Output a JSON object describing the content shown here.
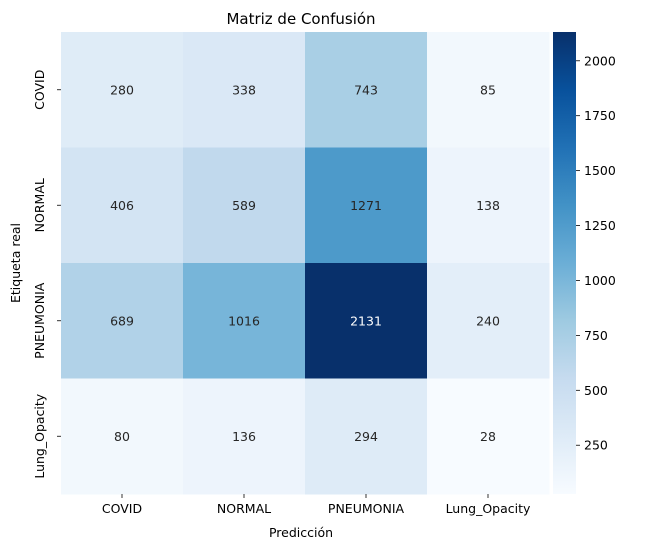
{
  "chart_data": {
    "type": "heatmap",
    "title": "Matriz de Confusión",
    "xlabel": "Predicción",
    "ylabel": "Etiqueta real",
    "x_categories": [
      "COVID",
      "NORMAL",
      "PNEUMONIA",
      "Lung_Opacity"
    ],
    "y_categories": [
      "COVID",
      "NORMAL",
      "PNEUMONIA",
      "Lung_Opacity"
    ],
    "values": [
      [
        280,
        338,
        743,
        85
      ],
      [
        406,
        589,
        1271,
        138
      ],
      [
        689,
        1016,
        2131,
        240
      ],
      [
        80,
        136,
        294,
        28
      ]
    ],
    "colormap": "Blues",
    "vmin": 28,
    "vmax": 2131,
    "colorbar_ticks": [
      250,
      500,
      750,
      1000,
      1250,
      1500,
      1750,
      2000
    ]
  }
}
